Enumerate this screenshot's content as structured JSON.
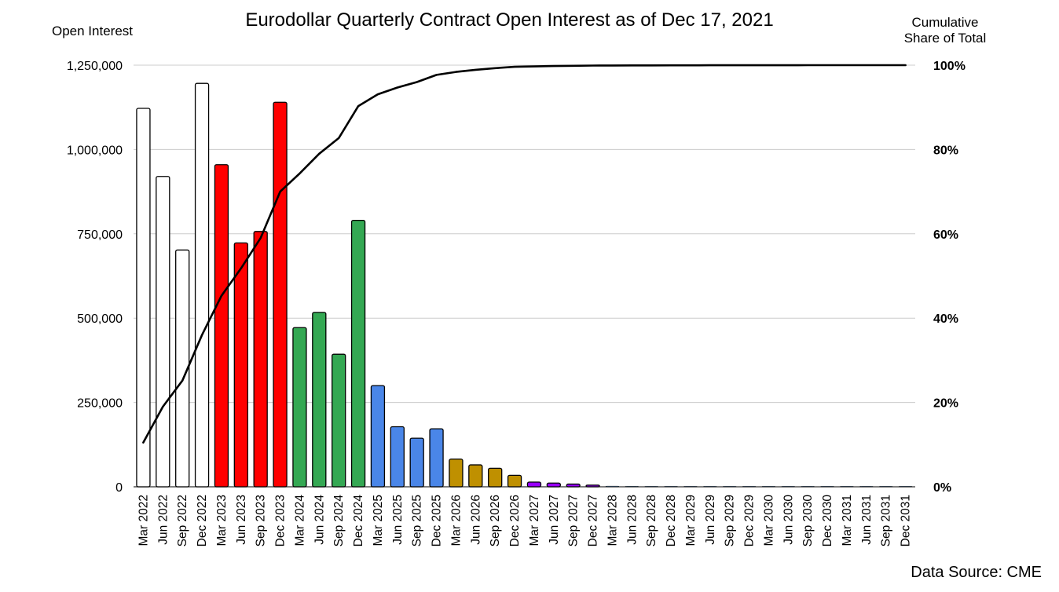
{
  "chart_data": {
    "type": "bar",
    "title": "Eurodollar Quarterly Contract Open Interest as of Dec 17, 2021",
    "ylabel": "Open Interest",
    "y2label_line1": "Cumulative",
    "y2label_line2": "Share of Total",
    "source": "Data Source: CME",
    "ylim": [
      0,
      1250000
    ],
    "y2lim": [
      0,
      100
    ],
    "y_ticks": [
      "0",
      "250,000",
      "500,000",
      "750,000",
      "1,000,000",
      "1,250,000"
    ],
    "y2_ticks": [
      "0%",
      "20%",
      "40%",
      "60%",
      "80%",
      "100%"
    ],
    "grid": true,
    "categories": [
      "Mar 2022",
      "Jun 2022",
      "Sep 2022",
      "Dec 2022",
      "Mar 2023",
      "Jun 2023",
      "Sep 2023",
      "Dec 2023",
      "Mar 2024",
      "Jun 2024",
      "Sep 2024",
      "Dec 2024",
      "Mar 2025",
      "Jun 2025",
      "Sep 2025",
      "Dec 2025",
      "Mar 2026",
      "Jun 2026",
      "Sep 2026",
      "Dec 2026",
      "Mar 2027",
      "Jun 2027",
      "Sep 2027",
      "Dec 2027",
      "Mar 2028",
      "Jun 2028",
      "Sep 2028",
      "Dec 2028",
      "Mar 2029",
      "Jun 2029",
      "Sep 2029",
      "Dec 2029",
      "Mar 2030",
      "Jun 2030",
      "Sep 2030",
      "Dec 2030",
      "Mar 2031",
      "Jun 2031",
      "Sep 2031",
      "Dec 2031"
    ],
    "series": [
      {
        "type": "bar",
        "values": [
          1122000,
          920000,
          702000,
          1196000,
          955000,
          723000,
          757000,
          1140000,
          472000,
          517000,
          393000,
          790000,
          300000,
          178000,
          144000,
          172000,
          82000,
          65000,
          55000,
          34000,
          14000,
          11000,
          8000,
          5000,
          2000,
          1500,
          1200,
          1000,
          800,
          600,
          500,
          400,
          300,
          250,
          200,
          150,
          120,
          100,
          80,
          60
        ],
        "colors": [
          "#ffffff",
          "#ffffff",
          "#ffffff",
          "#ffffff",
          "#ff0000",
          "#ff0000",
          "#ff0000",
          "#ff0000",
          "#34a853",
          "#34a853",
          "#34a853",
          "#34a853",
          "#4a86e8",
          "#4a86e8",
          "#4a86e8",
          "#4a86e8",
          "#bf9000",
          "#bf9000",
          "#bf9000",
          "#bf9000",
          "#9900ff",
          "#9900ff",
          "#9900ff",
          "#9900ff",
          "#6fa8dc",
          "#6fa8dc",
          "#6fa8dc",
          "#6fa8dc",
          "#6fa8dc",
          "#6fa8dc",
          "#6fa8dc",
          "#6fa8dc",
          "#6fa8dc",
          "#6fa8dc",
          "#6fa8dc",
          "#6fa8dc",
          "#6fa8dc",
          "#6fa8dc",
          "#6fa8dc",
          "#6fa8dc"
        ]
      },
      {
        "type": "line",
        "axis": "right",
        "color": "#000000",
        "values": [
          10.5,
          19,
          25.2,
          36,
          45.3,
          51.8,
          59,
          70,
          74.3,
          79,
          82.7,
          90.3,
          93.1,
          94.7,
          96,
          97.7,
          98.4,
          98.9,
          99.3,
          99.6,
          99.7,
          99.8,
          99.85,
          99.9,
          99.92,
          99.94,
          99.95,
          99.96,
          99.97,
          99.98,
          99.98,
          99.99,
          99.99,
          99.99,
          100,
          100,
          100,
          100,
          100,
          100
        ]
      }
    ]
  }
}
